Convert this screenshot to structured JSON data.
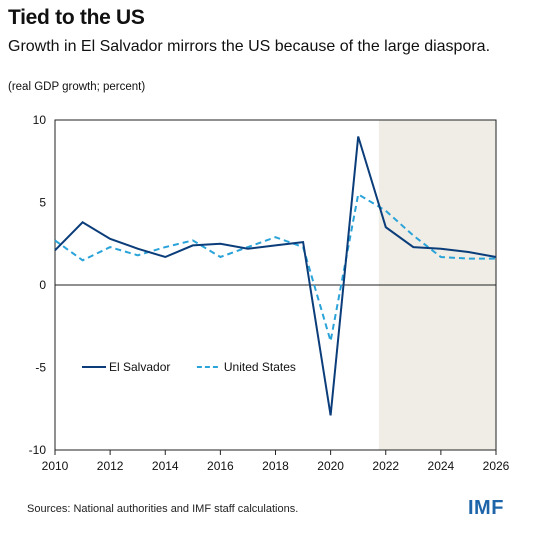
{
  "title": "Tied to the US",
  "subtitle": "Growth in El Salvador mirrors the US because of the large diaspora.",
  "note": "(real GDP growth; percent)",
  "source": "Sources: National authorities and IMF staff calculations.",
  "logo": "IMF",
  "colors": {
    "el_salvador": "#0b3d7a",
    "united_states": "#2aa3d9",
    "projection_shade": "#efede6",
    "zero_line": "#222222"
  },
  "chart_data": {
    "type": "line",
    "x": [
      2010,
      2011,
      2012,
      2013,
      2014,
      2015,
      2016,
      2017,
      2018,
      2019,
      2020,
      2021,
      2022,
      2023,
      2024,
      2025,
      2026
    ],
    "series": [
      {
        "name": "El Salvador",
        "style": "solid",
        "values": [
          2.1,
          3.8,
          2.8,
          2.2,
          1.7,
          2.4,
          2.5,
          2.2,
          2.4,
          2.6,
          -7.9,
          9.0,
          3.5,
          2.3,
          2.2,
          2.0,
          1.7
        ]
      },
      {
        "name": "United States",
        "style": "dashed",
        "values": [
          2.7,
          1.5,
          2.3,
          1.8,
          2.3,
          2.7,
          1.7,
          2.3,
          2.9,
          2.3,
          -3.4,
          5.5,
          4.5,
          3.0,
          1.7,
          1.6,
          1.6
        ]
      }
    ],
    "xlim": [
      2010,
      2026
    ],
    "ylim": [
      -10,
      10
    ],
    "x_ticks": [
      "2010",
      "2012",
      "2014",
      "2016",
      "2018",
      "2020",
      "2022",
      "2024",
      "2026"
    ],
    "y_ticks": [
      "10",
      "5",
      "0",
      "-5",
      "-10"
    ],
    "projection_start": 2021.75,
    "legend_position": "lower-left",
    "grid": false
  }
}
